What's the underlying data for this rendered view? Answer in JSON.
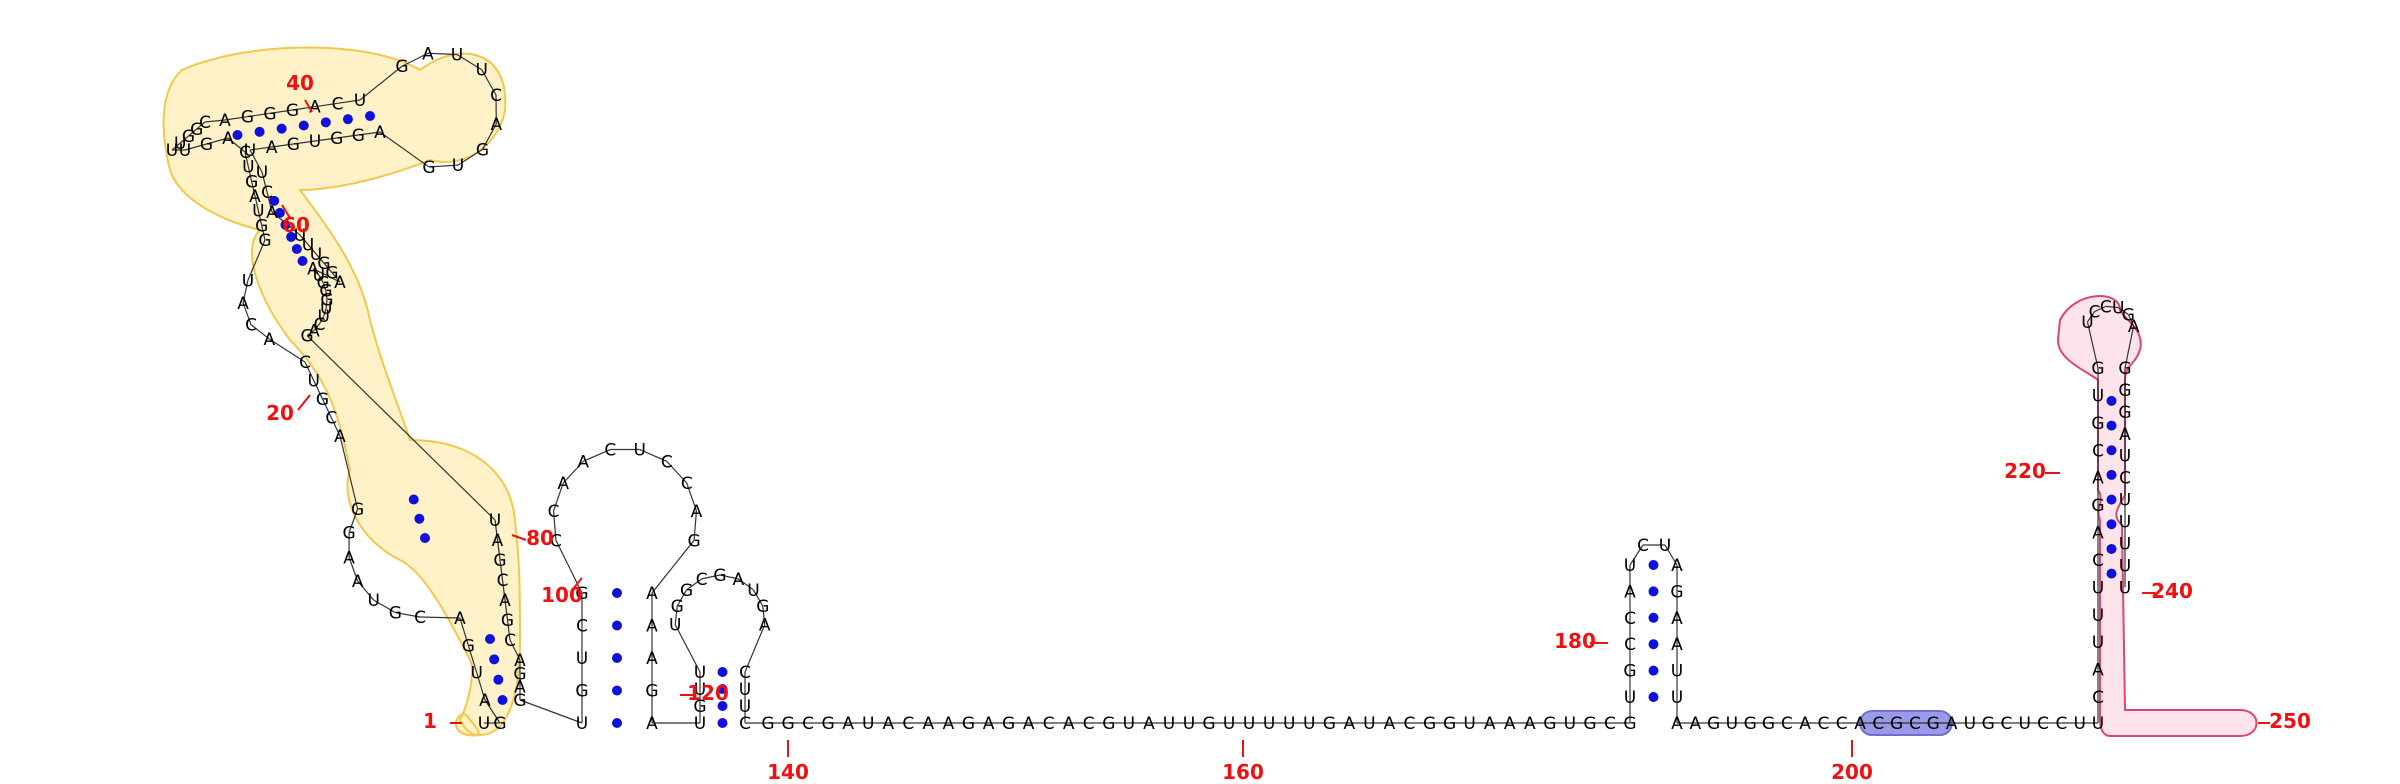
{
  "sequence": "UGAUGACGUAAGGACGUCACAUGGUAGUCAGUUUGGCAGGGACUGAUUCAGUGAGGUGAUUCAUUUGGAAUGGGUUCAGUAGCAGCAGAGUGUCGCCAACUCCAGAAAGAUGUUUGGCGAUGACUUCGGCGAUACAAGAGACACGUAUUGUUUUUGAUACGGUAAAGUGCGUGCCAUCUAGAAUUAAGUGGCACCACGCGAUGCUCCUUCAUUUCAGACGUGUCCUGAGGGAUCUUUUU",
  "position_labels": [
    "1",
    "20",
    "40",
    "60",
    "80",
    "100",
    "120",
    "140",
    "160",
    "180",
    "200",
    "220",
    "240",
    "250"
  ],
  "colors": {
    "label": "#ee1111",
    "base_pair": "#1010dd",
    "highlight_yellow": "#f2c84b",
    "highlight_pink": "#dd4477",
    "highlight_blue": "#7070cc"
  }
}
